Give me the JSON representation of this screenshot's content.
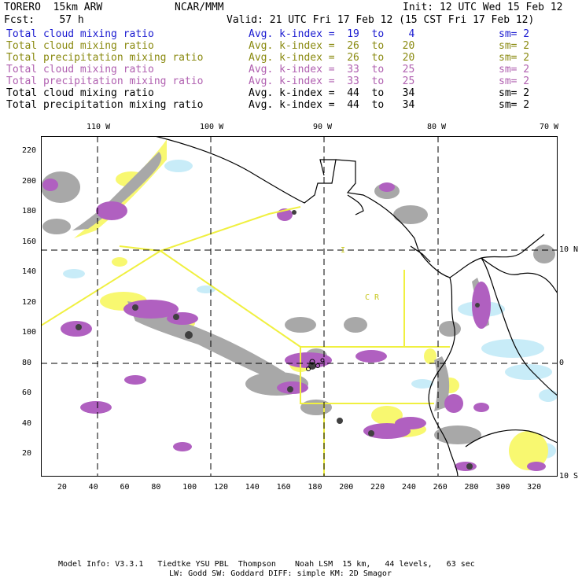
{
  "header": {
    "model": "TORERO  15km ARW",
    "org": "NCAR/MMM",
    "init": "Init: 12 UTC Wed 15 Feb 12",
    "fcst": "Fcst:    57 h",
    "valid": "Valid: 21 UTC Fri 17 Feb 12 (15 CST Fri 17 Feb 12)"
  },
  "legend_rows": [
    {
      "field": "Total cloud mixing ratio",
      "kindex": "Avg. k-index =  19  to    4",
      "sm": "sm= 2",
      "color": "#1a1ad0"
    },
    {
      "field": "Total cloud mixing ratio",
      "kindex": "Avg. k-index =  26  to   20",
      "sm": "sm= 2",
      "color": "#8a8a10"
    },
    {
      "field": "Total precipitation mixing ratio",
      "kindex": "Avg. k-index =  26  to   20",
      "sm": "sm= 2",
      "color": "#8a8a10"
    },
    {
      "field": "Total cloud mixing ratio",
      "kindex": "Avg. k-index =  33  to   25",
      "sm": "sm= 2",
      "color": "#b060b0"
    },
    {
      "field": "Total precipitation mixing ratio",
      "kindex": "Avg. k-index =  33  to   25",
      "sm": "sm= 2",
      "color": "#b060b0"
    },
    {
      "field": "Total cloud mixing ratio",
      "kindex": "Avg. k-index =  44  to   34",
      "sm": "sm= 2",
      "color": "#000000"
    },
    {
      "field": "Total precipitation mixing ratio",
      "kindex": "Avg. k-index =  44  to   34",
      "sm": "sm= 2",
      "color": "#000000"
    }
  ],
  "axes": {
    "top_lon_labels": [
      "110 W",
      "100 W",
      "90 W",
      "80 W",
      "70 W"
    ],
    "right_lat_labels": [
      "10 N",
      "0",
      "10 S"
    ],
    "left_ticks": [
      "20",
      "40",
      "60",
      "80",
      "100",
      "120",
      "140",
      "160",
      "180",
      "200",
      "220"
    ],
    "bottom_ticks": [
      "20",
      "40",
      "60",
      "80",
      "100",
      "120",
      "140",
      "160",
      "180",
      "200",
      "220",
      "240",
      "260",
      "280",
      "300",
      "320"
    ]
  },
  "map_labels": {
    "cr": "C R",
    "i_mark": "I"
  },
  "footer": {
    "line1": "Model Info: V3.3.1   Tiedtke YSU PBL  Thompson    Noah LSM  15 km,   44 levels,   63 sec",
    "line2": "LW: Godd SW: Goddard DIFF: simple KM: 2D Smagor"
  },
  "colors": {
    "gray": "#a0a0a0",
    "dark": "#404040",
    "purple": "#b060c0",
    "yellow": "#f8f870",
    "lightblue": "#c8ecf8",
    "boundary": "#f0f040"
  }
}
